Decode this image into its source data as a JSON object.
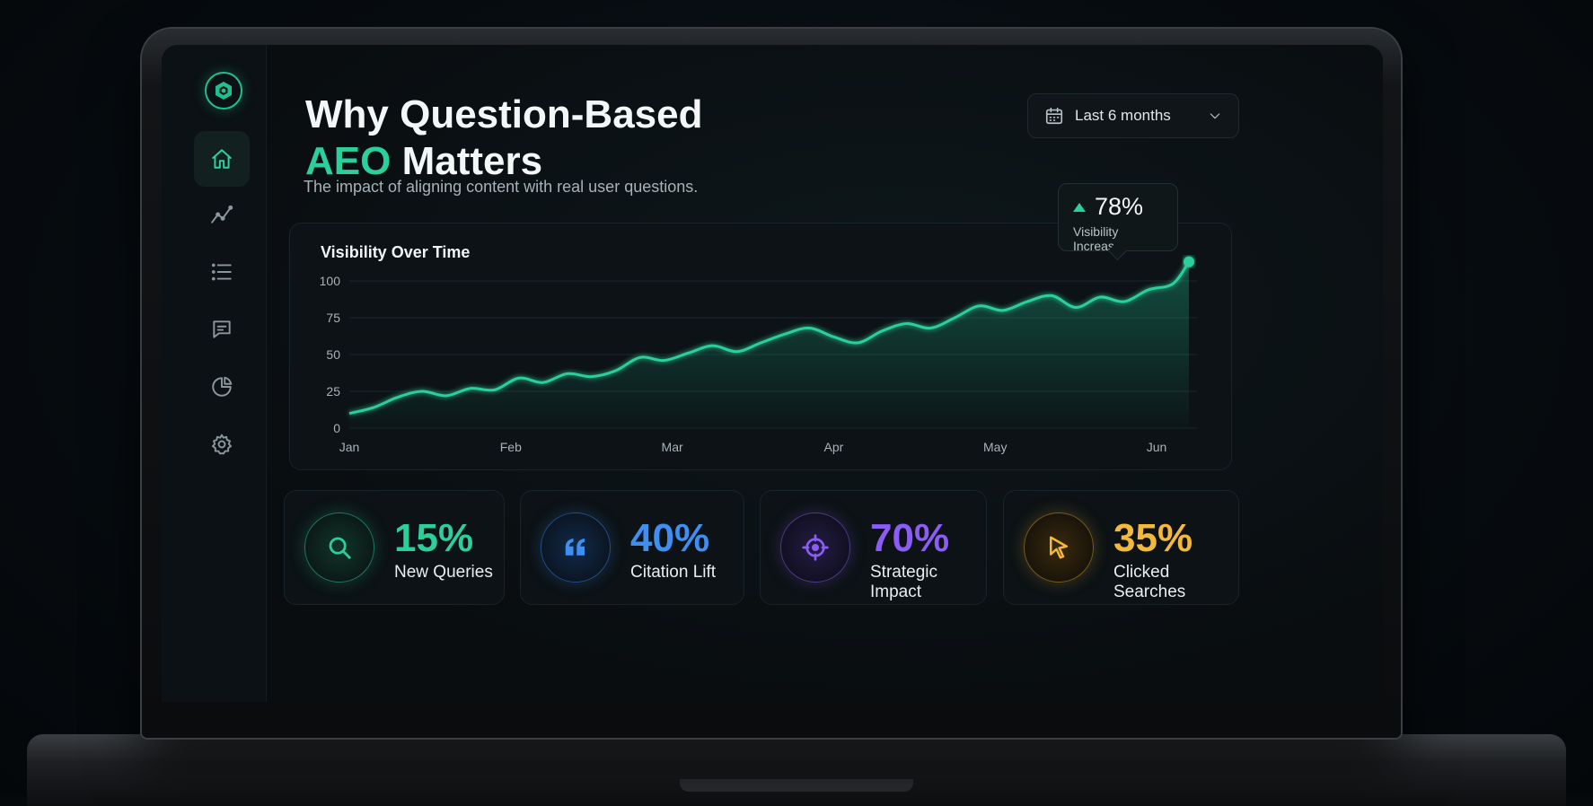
{
  "header": {
    "title_line1": "Why Question-Based",
    "title_accent": "AEO",
    "title_line2_rest": " Matters",
    "subtitle": "The impact of aligning content with real user questions."
  },
  "date_range": {
    "label": "Last 6 months"
  },
  "sidebar": {
    "items": [
      {
        "name": "home",
        "icon": "home-icon",
        "active": true
      },
      {
        "name": "analytics",
        "icon": "trend-line-icon",
        "active": false
      },
      {
        "name": "list",
        "icon": "list-icon",
        "active": false
      },
      {
        "name": "messages",
        "icon": "message-icon",
        "active": false
      },
      {
        "name": "reports",
        "icon": "pie-chart-icon",
        "active": false
      },
      {
        "name": "settings",
        "icon": "gear-icon",
        "active": false
      }
    ]
  },
  "tooltip": {
    "value": "78%",
    "label": "Visibility Increase"
  },
  "stats": [
    {
      "value": "15%",
      "label": "New Queries",
      "icon": "search-icon",
      "color": "#2bcf9a"
    },
    {
      "value": "40%",
      "label": "Citation Lift",
      "icon": "quote-icon",
      "color": "#3f8ff0"
    },
    {
      "value": "70%",
      "label": "Strategic Impact",
      "icon": "target-icon",
      "color": "#8b5cf6"
    },
    {
      "value": "35%",
      "label": "Clicked Searches",
      "icon": "cursor-icon",
      "color": "#f2b93b"
    }
  ],
  "colors": {
    "accent": "#2bcf9a"
  },
  "chart_data": {
    "type": "area",
    "title": "Visibility Over Time",
    "xlabel": "",
    "ylabel": "",
    "ylim": [
      0,
      100
    ],
    "yticks": [
      "100",
      "75",
      "50",
      "25",
      "0"
    ],
    "categories": [
      "Jan",
      "Feb",
      "Mar",
      "Apr",
      "May",
      "Jun"
    ],
    "x": [
      0,
      0.15,
      0.3,
      0.45,
      0.6,
      0.75,
      0.9,
      1.05,
      1.2,
      1.35,
      1.5,
      1.65,
      1.8,
      1.95,
      2.1,
      2.25,
      2.4,
      2.55,
      2.7,
      2.85,
      3.0,
      3.15,
      3.3,
      3.45,
      3.6,
      3.75,
      3.9,
      4.05,
      4.2,
      4.35,
      4.5,
      4.65,
      4.8,
      4.95,
      5.1,
      5.2
    ],
    "values": [
      10,
      14,
      21,
      25,
      22,
      27,
      26,
      34,
      31,
      37,
      35,
      39,
      48,
      46,
      51,
      56,
      52,
      58,
      64,
      68,
      62,
      58,
      66,
      71,
      68,
      75,
      83,
      80,
      86,
      90,
      82,
      89,
      86,
      94,
      98,
      113
    ],
    "legend": "none",
    "grid": true
  }
}
